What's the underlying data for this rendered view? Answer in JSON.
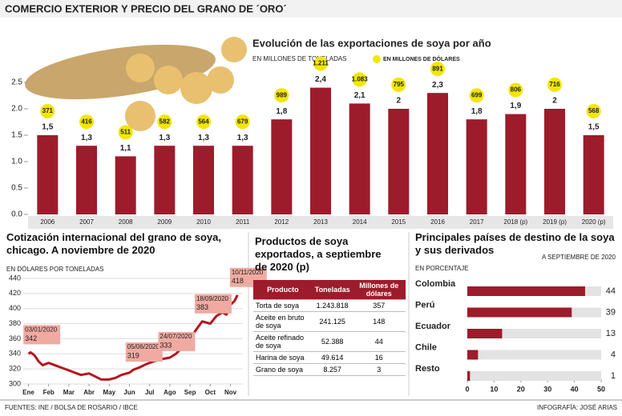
{
  "title": "COMERCIO EXTERIOR Y PRECIO DEL GRANO DE ´ORO´",
  "chart_data": [
    {
      "type": "bar",
      "title": "Evolución de las exportaciones de soya por año",
      "y_label": "EN MILLONES DE TONELADAS",
      "categories": [
        "2006",
        "2007",
        "2008",
        "2009",
        "2010",
        "2011",
        "2012",
        "2013",
        "2014",
        "2015",
        "2016",
        "2017",
        "2018 (p)",
        "2019 (p)",
        "2020 (p)"
      ],
      "series": [
        {
          "color": "#9c1c2b",
          "values": [
            1.5,
            1.3,
            1.1,
            1.3,
            1.3,
            1.3,
            1.8,
            2.4,
            2.1,
            2,
            2.3,
            1.8,
            1.9,
            2,
            1.5
          ],
          "value_labels": [
            "1,5",
            "1,3",
            "1,1",
            "1,3",
            "1,3",
            "1,3",
            "1,8",
            "2,4",
            "2,1",
            "2",
            "2,3",
            "1,8",
            "1,9",
            "2",
            "1,5"
          ]
        }
      ],
      "dollars": {
        "name": "EN MILLONES DE DÓLARES",
        "color": "#f3e600",
        "values": [
          371,
          416,
          511,
          582,
          564,
          679,
          989,
          1211,
          1083,
          795,
          891,
          699,
          806,
          716,
          568
        ],
        "value_labels": [
          "371",
          "416",
          "511",
          "582",
          "564",
          "679",
          "989",
          "1.211",
          "1.083",
          "795",
          "891",
          "699",
          "806",
          "716",
          "568"
        ]
      },
      "ylim": [
        0,
        2.5
      ],
      "yticks": [
        {
          "value": 0,
          "label": "0.0"
        },
        {
          "value": 0.5,
          "label": "0.5"
        },
        {
          "value": 1,
          "label": "1.0"
        },
        1.5,
        {
          "value": 2,
          "label": "2.0"
        },
        2.5
      ]
    },
    {
      "type": "line",
      "title": "Cotización internacional del grano de soya, chicago. A noviembre de 2020",
      "y_label": "EN DÓLARES POR TONELADAS",
      "x": [
        0,
        0.1,
        0.3,
        0.5,
        0.7,
        1,
        1.3,
        1.6,
        2,
        2.3,
        2.6,
        3,
        3.3,
        3.6,
        4,
        4.3,
        4.6,
        5,
        5.2,
        5.5,
        5.8,
        6.2,
        6.6,
        7,
        7.3,
        7.6,
        8,
        8.3,
        8.6,
        9,
        9.3,
        9.6,
        9.8,
        10,
        10.2,
        10.35
      ],
      "series": [
        {
          "color": "#b5161f",
          "values": [
            340,
            342,
            338,
            330,
            325,
            328,
            325,
            322,
            318,
            315,
            312,
            314,
            310,
            306,
            306,
            308,
            312,
            315,
            319,
            322,
            326,
            330,
            333,
            335,
            340,
            348,
            360,
            372,
            383,
            380,
            390,
            395,
            392,
            405,
            410,
            418
          ]
        }
      ],
      "xlim": [
        -0.1,
        10.6
      ],
      "xticks": [
        {
          "value": 0,
          "label": "Ene"
        },
        {
          "value": 1,
          "label": "Feb"
        },
        {
          "value": 2,
          "label": "Mar"
        },
        {
          "value": 3,
          "label": "Abr"
        },
        {
          "value": 4,
          "label": "May"
        },
        {
          "value": 5,
          "label": "Jun"
        },
        {
          "value": 6,
          "label": "Jul"
        },
        {
          "value": 7,
          "label": "Ago"
        },
        {
          "value": 8,
          "label": "Sep"
        },
        {
          "value": 9,
          "label": "Oct"
        },
        {
          "value": 10,
          "label": "Nov"
        }
      ],
      "ylim": [
        300,
        440
      ],
      "yticks": [
        300,
        320,
        340,
        360,
        380,
        400,
        420,
        440
      ],
      "grid": true,
      "annotations": [
        {
          "date": "03/01/2020",
          "value": 342
        },
        {
          "date": "05/06/2020",
          "value": 319
        },
        {
          "date": "24/07/2020",
          "value": 333
        },
        {
          "date": "18/09/2020",
          "value": 383
        },
        {
          "date": "10/11/2020",
          "value": 418
        }
      ]
    },
    {
      "type": "hbar",
      "title": "Principales países de destino de la soya y sus derivados",
      "subtitle": "A SEPTIEMBRE DE 2020",
      "x_label": "EN PORCENTAJE",
      "categories": [
        "Colombia",
        "Perú",
        "Ecuador",
        "Chile",
        "Resto"
      ],
      "values": [
        44,
        39,
        13,
        4,
        1
      ],
      "color": "#9c1c2b",
      "xlim": [
        0,
        50
      ],
      "xticks": [
        0,
        10,
        20,
        30,
        40,
        50
      ]
    }
  ],
  "table": {
    "title": "Productos de soya exportados, a septiembre de 2020 (p)",
    "header": [
      "Producto",
      "Toneladas",
      "Millones de dólares"
    ],
    "rows": [
      [
        "Torta de soya",
        "1.243.818",
        "357"
      ],
      [
        "Aceite en bruto de soya",
        "241.125",
        "148"
      ],
      [
        "Aceite refinado de soya",
        "52.388",
        "44"
      ],
      [
        "Harina de soya",
        "49.614",
        "16"
      ],
      [
        "Grano de soya",
        "8.257",
        "3"
      ]
    ]
  },
  "footer": {
    "sources": "FUENTES: INE / BOLSA DE ROSARIO / IBCE",
    "credit": "INFOGRAFÍA: JOSÉ ARIAS"
  }
}
